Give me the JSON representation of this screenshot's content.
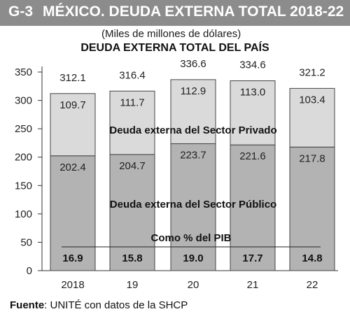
{
  "header": {
    "code": "G-3",
    "title": "MÉXICO. DEUDA EXTERNA TOTAL 2018-22"
  },
  "subtitle": "(Miles de millones de dólares)",
  "source": {
    "label": "Fuente",
    "text": ": UNITÉ con datos de la SHCP"
  },
  "colors": {
    "header_bg": "#8c8c8c",
    "privado": "#dadada",
    "publico": "#b3b3b3",
    "pib_band": "#e8e8e8"
  },
  "chart_data": {
    "type": "bar",
    "stacked": true,
    "title": "DEUDA EXTERNA TOTAL DEL PAÍS",
    "categories": [
      "2018",
      "19",
      "20",
      "21",
      "22"
    ],
    "series": [
      {
        "name": "Deuda externa del Sector Público",
        "values": [
          202.4,
          204.7,
          223.7,
          221.6,
          217.8
        ]
      },
      {
        "name": "Deuda externa del Sector Privado",
        "values": [
          109.7,
          111.7,
          112.9,
          113.0,
          103.4
        ]
      }
    ],
    "totals": [
      "312.1",
      "316.4",
      "336.6",
      "334.6",
      "321.2"
    ],
    "value_labels": {
      "publico": [
        "202.4",
        "204.7",
        "223.7",
        "221.6",
        "217.8"
      ],
      "privado": [
        "109.7",
        "111.7",
        "112.9",
        "113.0",
        "103.4"
      ]
    },
    "pib": {
      "label": "Como % del PIB",
      "values": [
        "16.9",
        "15.8",
        "19.0",
        "17.7",
        "14.8"
      ]
    },
    "y_ticks": [
      0,
      50,
      100,
      150,
      200,
      250,
      300,
      350
    ],
    "ylim": [
      0,
      350
    ],
    "xlabel": "",
    "ylabel": ""
  }
}
